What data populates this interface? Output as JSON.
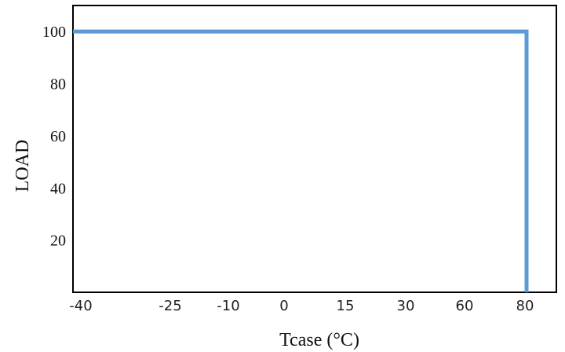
{
  "chart_data": {
    "type": "line",
    "xlabel": "Tcase (°C)",
    "ylabel": "LOAD",
    "x_ticks": [
      "-40",
      "-25",
      "-10",
      "0",
      "15",
      "30",
      "60",
      "80"
    ],
    "y_ticks": [
      "20",
      "40",
      "60",
      "80",
      "100"
    ],
    "ylim": [
      0,
      110
    ],
    "grid": false,
    "series": [
      {
        "color": "#5B9BD5",
        "points": [
          {
            "x": "-40",
            "y": 100
          },
          {
            "x": "80",
            "y": 100
          },
          {
            "x": "80",
            "y": 0
          }
        ]
      }
    ]
  }
}
